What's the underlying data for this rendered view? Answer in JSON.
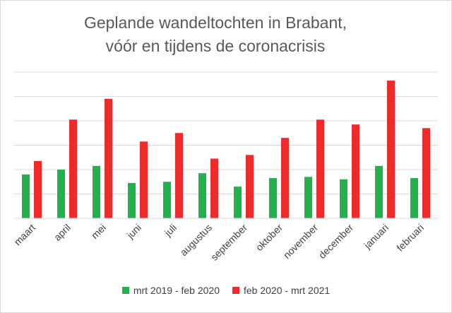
{
  "chart_data": {
    "type": "bar",
    "title": [
      "Geplande wandeltochten in Brabant,",
      "vóór en tijdens de coronacrisis"
    ],
    "categories": [
      "maart",
      "april",
      "mei",
      "juni",
      "juli",
      "augustus",
      "september",
      "oktober",
      "november",
      "december",
      "januari",
      "februari"
    ],
    "series": [
      {
        "name": "mrt 2019 - feb 2020",
        "color": "#22b14c",
        "values": [
          1.8,
          2.0,
          2.15,
          1.45,
          1.5,
          1.85,
          1.3,
          1.65,
          1.7,
          1.6,
          2.15,
          1.65
        ]
      },
      {
        "name": "feb 2020 - mrt 2021",
        "color": "#ee2a2a",
        "values": [
          2.35,
          4.05,
          4.9,
          3.15,
          3.5,
          2.45,
          2.6,
          3.3,
          4.05,
          3.85,
          5.65,
          3.7
        ]
      }
    ],
    "xlabel": "",
    "ylabel": "",
    "ylim": [
      0,
      6
    ],
    "y_tick_labels_shown": false,
    "grid": true,
    "legend_position": "bottom"
  }
}
